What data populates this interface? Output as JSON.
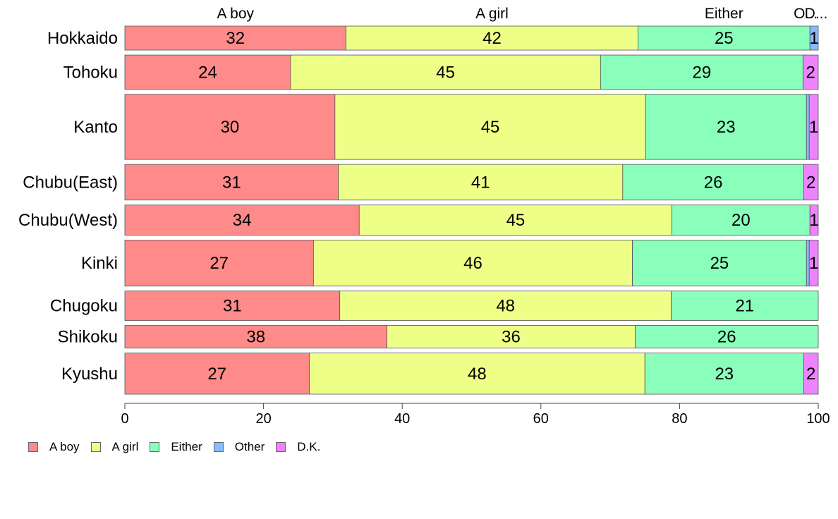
{
  "chart_data": {
    "type": "bar",
    "orientation": "horizontal",
    "stacked": "percent",
    "variable_width": true,
    "categories": [
      "Hokkaido",
      "Tohoku",
      "Kanto",
      "Chubu(East)",
      "Chubu(West)",
      "Kinki",
      "Chugoku",
      "Shikoku",
      "Kyushu"
    ],
    "column_labels": [
      "A boy",
      "A girl",
      "Either",
      "O...",
      "D..."
    ],
    "series": [
      {
        "name": "A boy",
        "color": "#ff8a8a",
        "values": [
          31.9,
          23.9,
          30.3,
          30.8,
          33.8,
          27.2,
          31.0,
          37.8,
          26.6
        ],
        "labels": [
          "32",
          "24",
          "30",
          "31",
          "34",
          "27",
          "31",
          "38",
          "27"
        ]
      },
      {
        "name": "A girl",
        "color": "#eeff88",
        "values": [
          42.1,
          44.7,
          44.8,
          41.0,
          45.1,
          46.0,
          47.8,
          35.8,
          48.4
        ],
        "labels": [
          "42",
          "45",
          "45",
          "41",
          "45",
          "46",
          "48",
          "36",
          "48"
        ]
      },
      {
        "name": "Either",
        "color": "#8affbb",
        "values": [
          24.8,
          29.2,
          23.2,
          26.1,
          19.9,
          25.1,
          21.2,
          26.4,
          22.9
        ],
        "labels": [
          "25",
          "29",
          "23",
          "26",
          "20",
          "25",
          "21",
          "26",
          "23"
        ]
      },
      {
        "name": "Other",
        "color": "#88bbff",
        "values": [
          1.2,
          0.0,
          0.4,
          0.0,
          0.0,
          0.4,
          0.0,
          0.0,
          0.0
        ],
        "labels": [
          "1",
          "",
          "",
          "",
          "",
          "",
          "",
          "",
          ""
        ]
      },
      {
        "name": "D.K.",
        "color": "#ee82ff",
        "values": [
          0.0,
          2.2,
          1.3,
          2.1,
          1.2,
          1.3,
          0.0,
          0.0,
          2.1
        ],
        "labels": [
          "",
          "2",
          "1",
          "2",
          "1",
          "1",
          "",
          "",
          "2"
        ]
      }
    ],
    "bar_weights": [
      3.5,
      5.0,
      9.5,
      5.2,
      4.4,
      6.7,
      4.3,
      3.3,
      6.0
    ],
    "xlim": [
      0,
      100
    ],
    "xticks": [
      0,
      20,
      40,
      60,
      80,
      100
    ],
    "grid": false,
    "legend_position": "bottom-left",
    "xlabel": "",
    "ylabel": ""
  }
}
